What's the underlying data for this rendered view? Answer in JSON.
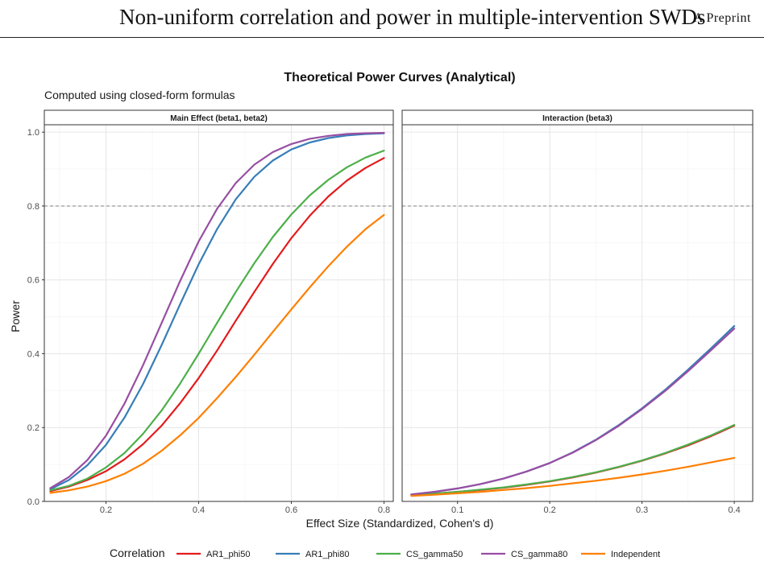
{
  "header": {
    "running_title": "Non-uniform correlation and power in multiple-intervention SWDs",
    "running_tag": "A Preprint"
  },
  "chart_data": {
    "type": "line",
    "title": "Theoretical Power Curves (Analytical)",
    "subtitle": "Computed using closed-form formulas",
    "xlabel": "Effect Size (Standardized, Cohen's d)",
    "ylabel": "Power",
    "legend_title": "Correlation",
    "legend_position": "bottom",
    "grid": true,
    "reference_line": {
      "y": 0.8,
      "style": "dashed"
    },
    "series_colors": {
      "AR1_phi50": "#e41a1c",
      "AR1_phi80": "#377eb8",
      "CS_gamma50": "#4daf4a",
      "CS_gamma80": "#984ea3",
      "Independent": "#ff7f00"
    },
    "panels": [
      {
        "title": "Main Effect (beta1, beta2)",
        "xlim": [
          0.067,
          0.82
        ],
        "ylim": [
          0,
          1.02
        ],
        "x_ticks": [
          "0.2",
          "0.4",
          "0.6",
          "0.8"
        ],
        "y_ticks": [
          "0.0",
          "0.2",
          "0.4",
          "0.6",
          "0.8",
          "1.0"
        ],
        "x": [
          0.08,
          0.12,
          0.16,
          0.2,
          0.24,
          0.28,
          0.32,
          0.36,
          0.4,
          0.44,
          0.48,
          0.52,
          0.56,
          0.6,
          0.64,
          0.68,
          0.72,
          0.76,
          0.8
        ],
        "series": [
          {
            "name": "AR1_phi50",
            "values": [
              0.028,
              0.04,
              0.058,
              0.082,
              0.114,
              0.155,
              0.205,
              0.266,
              0.334,
              0.409,
              0.489,
              0.567,
              0.643,
              0.713,
              0.774,
              0.826,
              0.869,
              0.903,
              0.93
            ]
          },
          {
            "name": "AR1_phi80",
            "values": [
              0.033,
              0.058,
              0.098,
              0.153,
              0.227,
              0.318,
              0.423,
              0.534,
              0.642,
              0.738,
              0.818,
              0.879,
              0.923,
              0.953,
              0.972,
              0.984,
              0.991,
              0.995,
              0.997
            ]
          },
          {
            "name": "CS_gamma50",
            "values": [
              0.03,
              0.042,
              0.062,
              0.092,
              0.131,
              0.183,
              0.246,
              0.319,
              0.4,
              0.484,
              0.567,
              0.645,
              0.716,
              0.777,
              0.829,
              0.871,
              0.905,
              0.931,
              0.95
            ]
          },
          {
            "name": "CS_gamma80",
            "values": [
              0.036,
              0.066,
              0.112,
              0.178,
              0.265,
              0.369,
              0.483,
              0.597,
              0.704,
              0.793,
              0.862,
              0.912,
              0.946,
              0.968,
              0.982,
              0.99,
              0.995,
              0.997,
              0.998
            ]
          },
          {
            "name": "Independent",
            "values": [
              0.023,
              0.03,
              0.04,
              0.055,
              0.075,
              0.102,
              0.137,
              0.179,
              0.226,
              0.28,
              0.337,
              0.397,
              0.459,
              0.52,
              0.58,
              0.637,
              0.69,
              0.737,
              0.776
            ]
          }
        ]
      },
      {
        "title": "Interaction (beta3)",
        "xlim": [
          0.04,
          0.42
        ],
        "ylim": [
          0,
          1.02
        ],
        "x_ticks": [
          "0.1",
          "0.2",
          "0.3",
          "0.4"
        ],
        "y_ticks": [],
        "x": [
          0.05,
          0.075,
          0.1,
          0.125,
          0.15,
          0.175,
          0.2,
          0.225,
          0.25,
          0.275,
          0.3,
          0.325,
          0.35,
          0.375,
          0.4
        ],
        "series": [
          {
            "name": "AR1_phi50",
            "values": [
              0.017,
              0.021,
              0.026,
              0.031,
              0.037,
              0.045,
              0.054,
              0.065,
              0.078,
              0.093,
              0.11,
              0.13,
              0.152,
              0.177,
              0.205
            ]
          },
          {
            "name": "AR1_phi80",
            "values": [
              0.019,
              0.026,
              0.035,
              0.047,
              0.062,
              0.081,
              0.104,
              0.133,
              0.167,
              0.207,
              0.252,
              0.302,
              0.357,
              0.415,
              0.475
            ]
          },
          {
            "name": "CS_gamma50",
            "values": [
              0.017,
              0.021,
              0.026,
              0.032,
              0.038,
              0.046,
              0.055,
              0.066,
              0.079,
              0.094,
              0.111,
              0.131,
              0.154,
              0.179,
              0.207
            ]
          },
          {
            "name": "CS_gamma80",
            "values": [
              0.019,
              0.026,
              0.035,
              0.047,
              0.062,
              0.081,
              0.104,
              0.132,
              0.166,
              0.205,
              0.25,
              0.299,
              0.353,
              0.41,
              0.468
            ]
          },
          {
            "name": "Independent",
            "values": [
              0.015,
              0.018,
              0.022,
              0.026,
              0.031,
              0.036,
              0.042,
              0.049,
              0.056,
              0.064,
              0.073,
              0.083,
              0.094,
              0.106,
              0.118
            ]
          }
        ]
      }
    ]
  }
}
